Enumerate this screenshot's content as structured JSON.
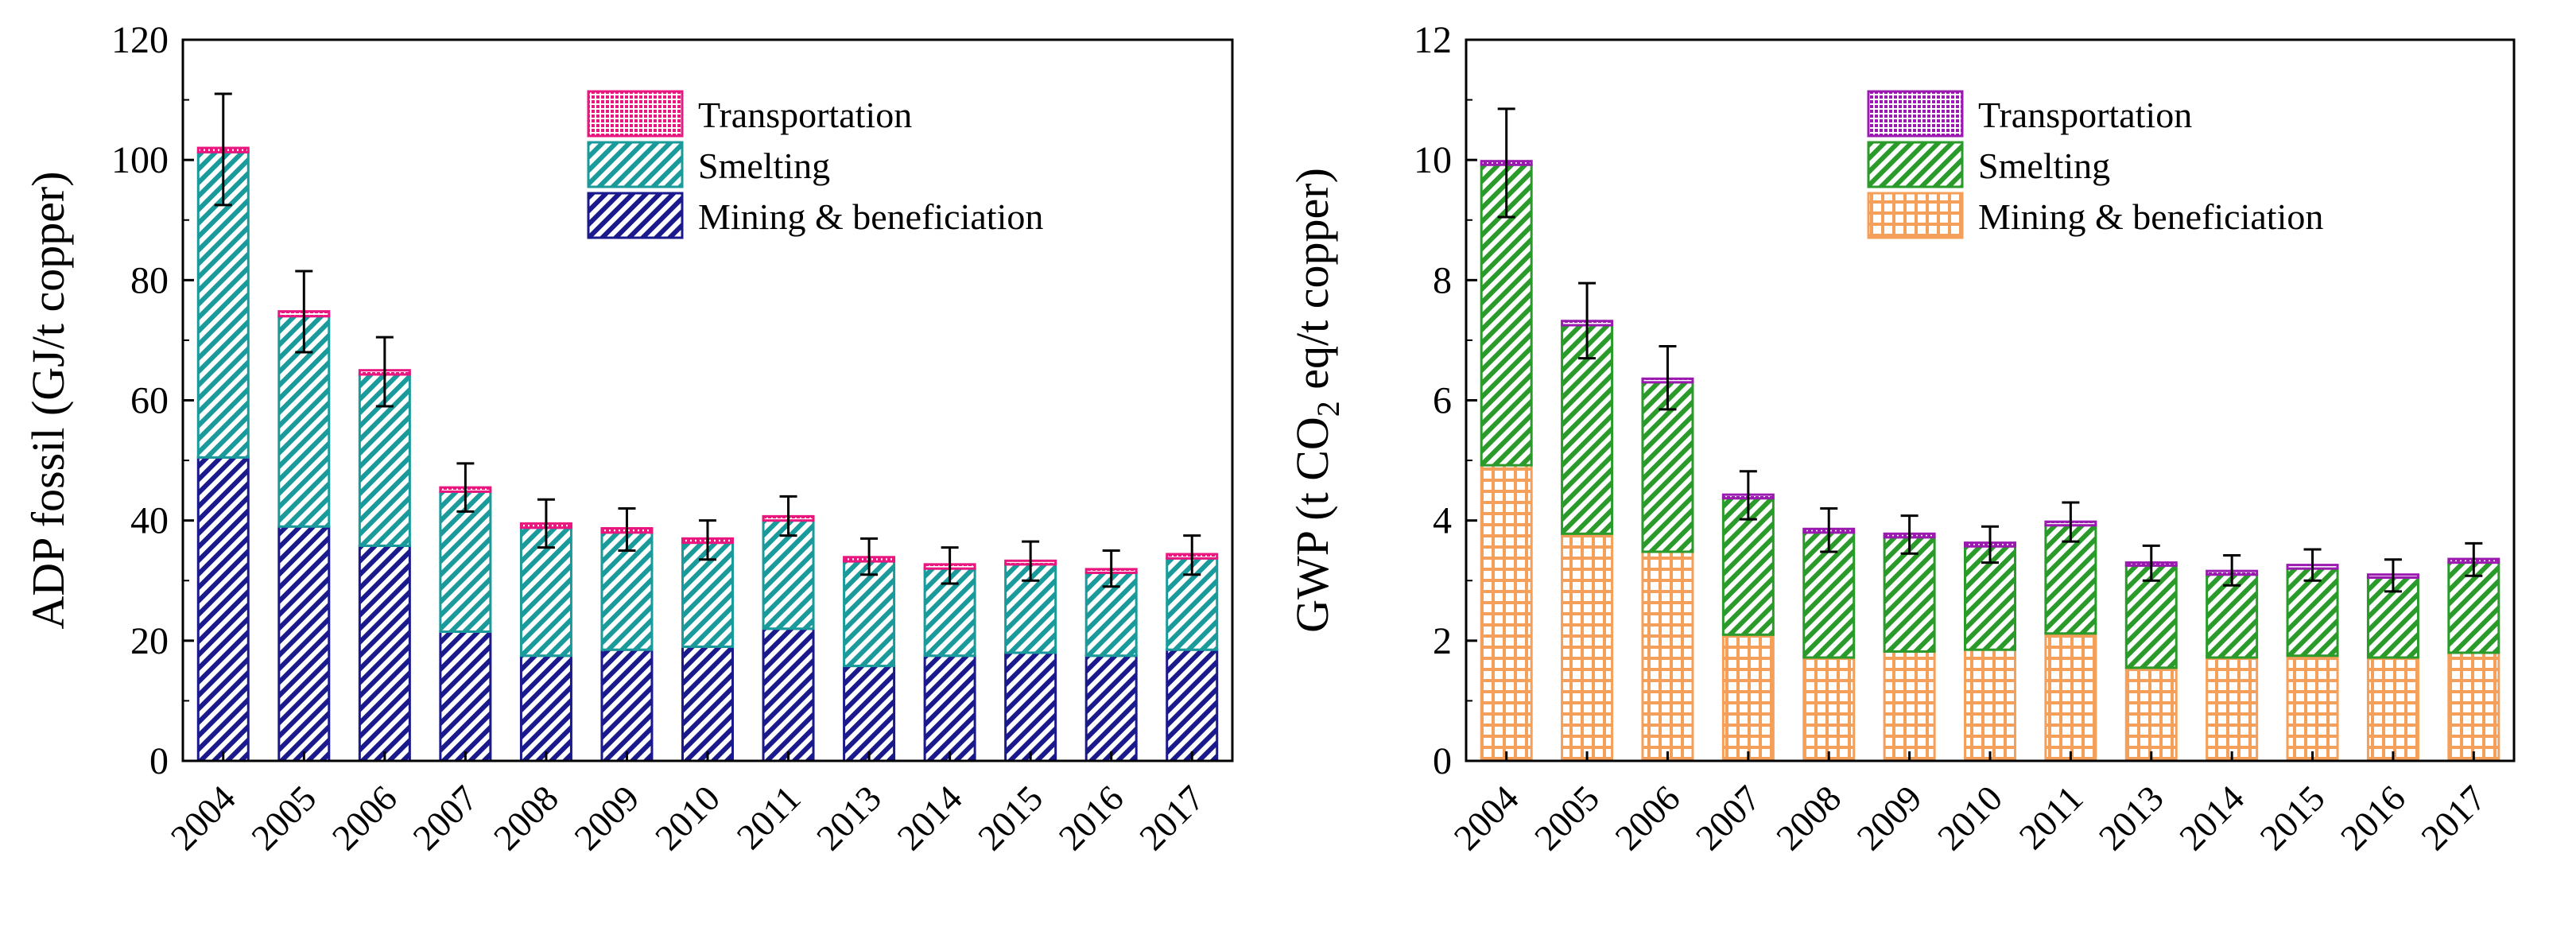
{
  "chart_data": [
    {
      "type": "bar",
      "stacked": true,
      "title": "",
      "xlabel": "",
      "ylabel": "ADP fossil (GJ/t copper)",
      "ylim": [
        0,
        120
      ],
      "yticks": [
        0,
        20,
        40,
        60,
        80,
        100,
        120
      ],
      "categories": [
        "2004",
        "2005",
        "2006",
        "2007",
        "2008",
        "2009",
        "2010",
        "2011",
        "2013",
        "2014",
        "2015",
        "2016",
        "2017"
      ],
      "series": [
        {
          "name": "Mining & beneficiation",
          "color": "#1a1a8c",
          "pattern": "diagonal",
          "values": [
            50.5,
            39,
            35.8,
            21.5,
            17.5,
            18.5,
            19,
            22,
            15.8,
            17.5,
            18,
            17.5,
            18.5
          ]
        },
        {
          "name": "Smelting",
          "color": "#1a9a9a",
          "pattern": "diagonal",
          "values": [
            50.8,
            35,
            28.5,
            23.3,
            21.3,
            19.5,
            17.3,
            18,
            17.4,
            14.5,
            14.7,
            13.8,
            15.2
          ]
        },
        {
          "name": "Transportation",
          "color": "#e8167e",
          "pattern": "dots",
          "values": [
            0.7,
            0.8,
            0.7,
            0.7,
            0.7,
            0.7,
            0.7,
            0.7,
            0.7,
            0.7,
            0.6,
            0.6,
            0.7
          ]
        }
      ],
      "error_upper": [
        111,
        81.5,
        70.5,
        49.5,
        43.5,
        42,
        40,
        44,
        37,
        35.5,
        36.5,
        35,
        37.5
      ],
      "error_lower": [
        92.5,
        68,
        59,
        41.5,
        35.5,
        35,
        33.5,
        37.5,
        31,
        29.5,
        30,
        29,
        31
      ],
      "legend": {
        "placement": "top-right",
        "order": [
          "Transportation",
          "Smelting",
          "Mining & beneficiation"
        ]
      }
    },
    {
      "type": "bar",
      "stacked": true,
      "title": "",
      "xlabel": "",
      "ylabel_prefix": "GWP (t CO",
      "ylabel_sub": "2",
      "ylabel_suffix": " eq/t copper)",
      "ylim": [
        0,
        12
      ],
      "yticks": [
        0,
        2,
        4,
        6,
        8,
        10,
        12
      ],
      "categories": [
        "2004",
        "2005",
        "2006",
        "2007",
        "2008",
        "2009",
        "2010",
        "2011",
        "2013",
        "2014",
        "2015",
        "2016",
        "2017"
      ],
      "series": [
        {
          "name": "Mining & beneficiation",
          "color": "#f5a05a",
          "pattern": "grid",
          "values": [
            4.92,
            3.78,
            3.48,
            2.1,
            1.72,
            1.82,
            1.85,
            2.12,
            1.55,
            1.72,
            1.75,
            1.72,
            1.8
          ]
        },
        {
          "name": "Smelting",
          "color": "#2a9a2a",
          "pattern": "diagonal",
          "values": [
            5.0,
            3.47,
            2.82,
            2.27,
            2.08,
            1.9,
            1.72,
            1.8,
            1.7,
            1.38,
            1.45,
            1.33,
            1.5
          ]
        },
        {
          "name": "Transportation",
          "color": "#9a1ab0",
          "pattern": "dots",
          "values": [
            0.06,
            0.07,
            0.06,
            0.06,
            0.06,
            0.06,
            0.06,
            0.06,
            0.05,
            0.06,
            0.06,
            0.05,
            0.06
          ]
        }
      ],
      "error_upper": [
        10.85,
        7.95,
        6.9,
        4.82,
        4.2,
        4.08,
        3.9,
        4.3,
        3.58,
        3.42,
        3.52,
        3.35,
        3.62
      ],
      "error_lower": [
        9.05,
        6.7,
        5.85,
        4.02,
        3.48,
        3.45,
        3.3,
        3.65,
        3.0,
        2.92,
        3.0,
        2.82,
        3.08
      ],
      "legend": {
        "placement": "top-right",
        "order": [
          "Transportation",
          "Smelting",
          "Mining & beneficiation"
        ]
      }
    }
  ]
}
